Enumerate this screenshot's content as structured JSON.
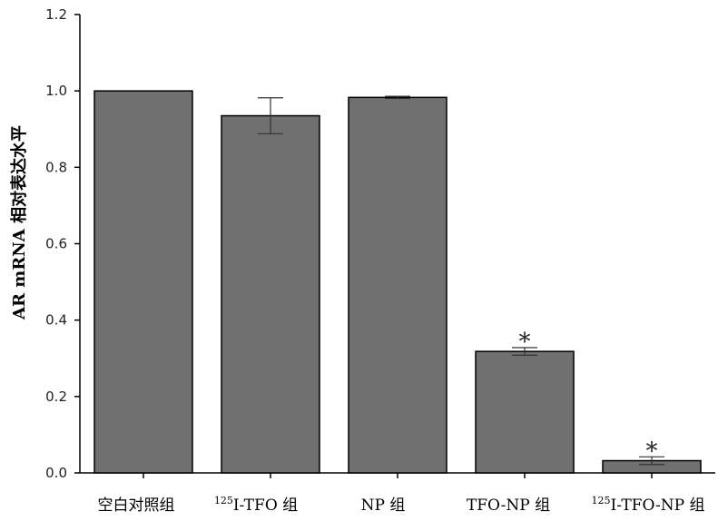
{
  "chart_data": {
    "type": "bar",
    "ylabel": "AR mRNA 相对表达水平",
    "ylim": [
      0,
      1.2
    ],
    "yticks": [
      "0.0",
      "0.2",
      "0.4",
      "0.6",
      "0.8",
      "1.0",
      "1.2"
    ],
    "categories": [
      {
        "sup": "",
        "text": "空白对照组"
      },
      {
        "sup": "125",
        "text": "I-TFO 组"
      },
      {
        "sup": "",
        "text": "NP 组"
      },
      {
        "sup": "",
        "text": "TFO-NP 组"
      },
      {
        "sup": "125",
        "text": "I-TFO-NP 组"
      }
    ],
    "values": [
      1.0,
      0.935,
      0.983,
      0.318,
      0.032
    ],
    "errors": [
      0.0,
      0.047,
      0.003,
      0.01,
      0.01
    ],
    "annotations": [
      "",
      "",
      "",
      "*",
      "*"
    ],
    "bar_color": "#707070",
    "grid": false
  }
}
